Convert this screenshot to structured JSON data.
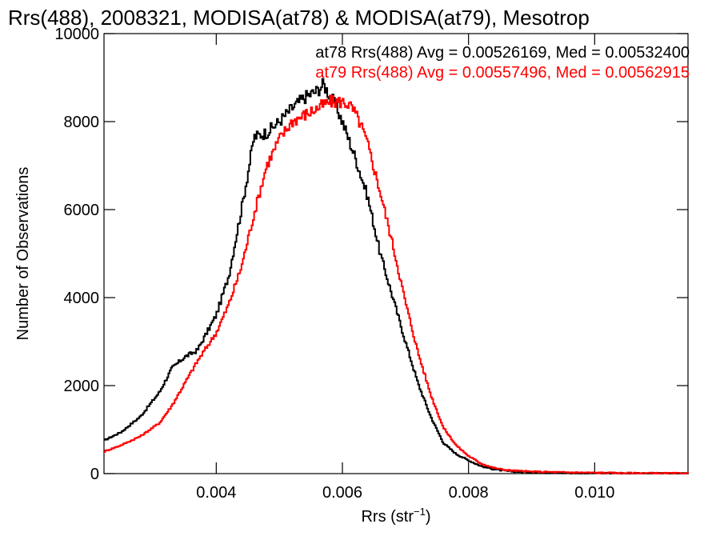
{
  "chart_data": {
    "type": "line",
    "title": "Rrs(488), 2008321, MODISA(at78) & MODISA(at79), Mesotrop",
    "xlabel_main": "Rrs (str",
    "xlabel_sup": "−1",
    "xlabel_close": ")",
    "ylabel": "Number of Observations",
    "xlim": [
      0.00222,
      0.01148
    ],
    "ylim": [
      0,
      10000
    ],
    "xticks": [
      {
        "value": 0.004,
        "label": "0.004"
      },
      {
        "value": 0.006,
        "label": "0.006"
      },
      {
        "value": 0.008,
        "label": "0.008"
      },
      {
        "value": 0.01,
        "label": "0.010"
      }
    ],
    "yticks": [
      {
        "value": 0,
        "label": "0"
      },
      {
        "value": 2000,
        "label": "2000"
      },
      {
        "value": 4000,
        "label": "4000"
      },
      {
        "value": 6000,
        "label": "6000"
      },
      {
        "value": 8000,
        "label": "8000"
      },
      {
        "value": 10000,
        "label": "10000"
      }
    ],
    "annotations": [
      {
        "text": "at78 Rrs(488) Avg = 0.00526169, Med = 0.00532400",
        "color": "#000000"
      },
      {
        "text": "at79 Rrs(488) Avg = 0.00557496, Med = 0.00562915",
        "color": "#ff0000"
      }
    ],
    "series": [
      {
        "color": "#000000",
        "x": [
          0.00222,
          0.0025,
          0.0028,
          0.0031,
          0.0033,
          0.0035,
          0.0037,
          0.004,
          0.0042,
          0.0044,
          0.0045,
          0.0046,
          0.0048,
          0.005,
          0.0052,
          0.0054,
          0.0056,
          0.0057,
          0.0058,
          0.0059,
          0.006,
          0.0062,
          0.0064,
          0.0066,
          0.0068,
          0.007,
          0.0072,
          0.0074,
          0.0076,
          0.0078,
          0.008,
          0.0082,
          0.0084,
          0.0086,
          0.0088,
          0.009,
          0.0095,
          0.01,
          0.0105,
          0.011,
          0.01148
        ],
        "y": [
          750,
          950,
          1300,
          1850,
          2400,
          2650,
          2800,
          3600,
          4500,
          6000,
          6800,
          7650,
          7750,
          8000,
          8300,
          8550,
          8700,
          8850,
          8600,
          8350,
          8000,
          7200,
          6300,
          5000,
          4000,
          3000,
          2050,
          1300,
          700,
          450,
          300,
          170,
          100,
          60,
          40,
          25,
          15,
          10,
          5,
          3,
          0
        ]
      },
      {
        "color": "#ff0000",
        "x": [
          0.00222,
          0.0025,
          0.0028,
          0.0031,
          0.0033,
          0.0035,
          0.0037,
          0.004,
          0.0042,
          0.0044,
          0.0046,
          0.0048,
          0.005,
          0.0052,
          0.0054,
          0.0056,
          0.0058,
          0.006,
          0.0061,
          0.0062,
          0.0063,
          0.0064,
          0.0066,
          0.0068,
          0.007,
          0.0072,
          0.0074,
          0.0076,
          0.0078,
          0.008,
          0.0082,
          0.0084,
          0.0086,
          0.0088,
          0.009,
          0.0095,
          0.01,
          0.0105,
          0.011,
          0.01148
        ],
        "y": [
          500,
          650,
          850,
          1150,
          1550,
          2050,
          2550,
          3200,
          3850,
          4700,
          5900,
          7000,
          7600,
          8000,
          8150,
          8300,
          8450,
          8450,
          8400,
          8200,
          7900,
          7500,
          6400,
          5200,
          3900,
          2750,
          1800,
          1050,
          650,
          400,
          230,
          130,
          80,
          60,
          45,
          30,
          20,
          12,
          8,
          5
        ]
      }
    ]
  }
}
